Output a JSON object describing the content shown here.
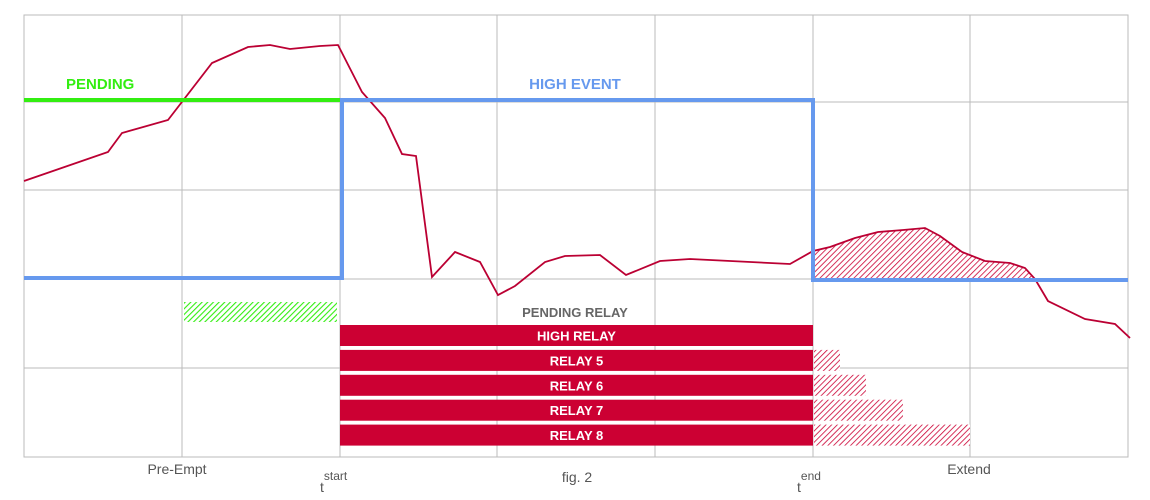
{
  "colors": {
    "grid": "#bbbbbb",
    "pending": "#33ee11",
    "high_event": "#6699ee",
    "relay": "#cc0033",
    "signal": "#bb0033"
  },
  "labels": {
    "pending": "PENDING",
    "high_event": "HIGH EVENT",
    "pending_relay": "PENDING  RELAY",
    "pre_empt": "Pre-Empt",
    "fig": "fig. 2",
    "extend": "Extend",
    "t_start_base": "t",
    "t_start_sup": "start",
    "t_end_base": "t",
    "t_end_sup": "end"
  },
  "relays": [
    {
      "label": "HIGH RELAY",
      "extend": 0
    },
    {
      "label": "RELAY 5",
      "extend": 1
    },
    {
      "label": "RELAY 6",
      "extend": 2
    },
    {
      "label": "RELAY 7",
      "extend": 3
    },
    {
      "label": "RELAY 8",
      "extend": 4
    }
  ]
}
